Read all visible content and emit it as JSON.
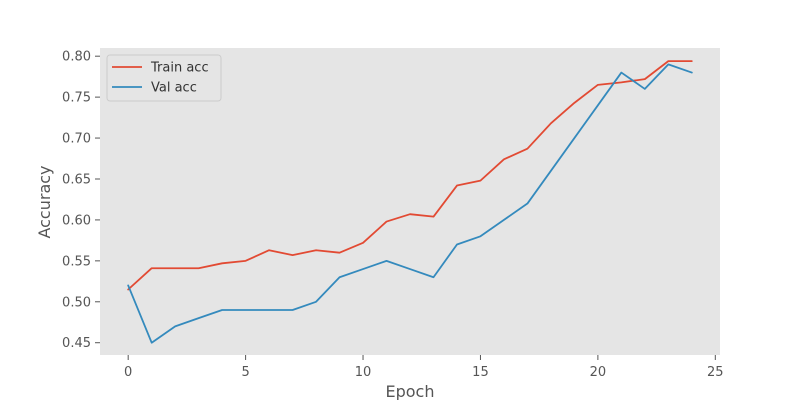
{
  "chart_data": {
    "type": "line",
    "xlabel": "Epoch",
    "ylabel": "Accuracy",
    "xlim": [
      -1.2,
      25.2
    ],
    "ylim": [
      0.435,
      0.81
    ],
    "xticks": [
      0,
      5,
      10,
      15,
      20,
      25
    ],
    "yticks": [
      0.45,
      0.5,
      0.55,
      0.6,
      0.65,
      0.7,
      0.75,
      0.8
    ],
    "ytick_labels": [
      "0.45",
      "0.50",
      "0.55",
      "0.60",
      "0.65",
      "0.70",
      "0.75",
      "0.80"
    ],
    "grid": false,
    "legend_position": "top-left",
    "x": [
      0,
      1,
      2,
      3,
      4,
      5,
      6,
      7,
      8,
      9,
      10,
      11,
      12,
      13,
      14,
      15,
      16,
      17,
      18,
      19,
      20,
      21,
      22,
      23,
      24
    ],
    "series": [
      {
        "name": "Train acc",
        "color": "#e24a33",
        "values": [
          0.515,
          0.541,
          0.541,
          0.541,
          0.547,
          0.55,
          0.563,
          0.557,
          0.563,
          0.56,
          0.572,
          0.598,
          0.607,
          0.604,
          0.642,
          0.648,
          0.674,
          0.687,
          0.718,
          0.743,
          0.765,
          0.768,
          0.772,
          0.794,
          0.794
        ]
      },
      {
        "name": "Val acc",
        "color": "#348abd",
        "values": [
          0.52,
          0.45,
          0.47,
          0.48,
          0.49,
          0.49,
          0.49,
          0.49,
          0.5,
          0.53,
          0.54,
          0.55,
          0.54,
          0.53,
          0.57,
          0.58,
          0.6,
          0.62,
          0.66,
          0.7,
          0.74,
          0.78,
          0.76,
          0.79,
          0.78
        ]
      }
    ]
  }
}
